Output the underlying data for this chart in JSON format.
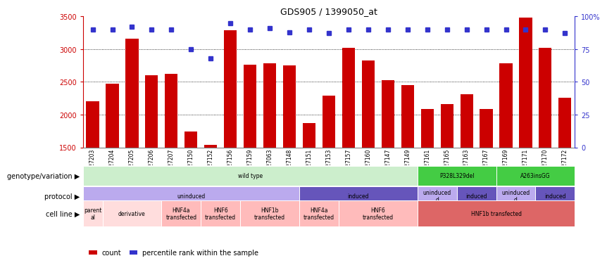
{
  "title": "GDS905 / 1399050_at",
  "samples": [
    "GSM27203",
    "GSM27204",
    "GSM27205",
    "GSM27206",
    "GSM27207",
    "GSM27150",
    "GSM27152",
    "GSM27156",
    "GSM27159",
    "GSM27063",
    "GSM27148",
    "GSM27151",
    "GSM27153",
    "GSM27157",
    "GSM27160",
    "GSM27147",
    "GSM27149",
    "GSM27161",
    "GSM27165",
    "GSM27163",
    "GSM27167",
    "GSM27169",
    "GSM27171",
    "GSM27170",
    "GSM27172"
  ],
  "counts": [
    2200,
    2470,
    3160,
    2600,
    2620,
    1740,
    1540,
    3290,
    2760,
    2780,
    2750,
    1870,
    2290,
    3020,
    2830,
    2530,
    2450,
    2090,
    2160,
    2310,
    2090,
    2780,
    3480,
    3020,
    2260
  ],
  "percentile_values": [
    90,
    90,
    92,
    90,
    90,
    75,
    68,
    95,
    90,
    91,
    88,
    90,
    87,
    90,
    90,
    90,
    90,
    90,
    90,
    90,
    90,
    90,
    90,
    90,
    87
  ],
  "ylim_left": [
    1500,
    3500
  ],
  "ylim_right": [
    0,
    100
  ],
  "bar_color": "#cc0000",
  "dot_color": "#3333cc",
  "bg_color": "#ffffff",
  "genotype_segments": [
    {
      "text": "wild type",
      "start": 0,
      "end": 17,
      "color": "#cceecc"
    },
    {
      "text": "P328L329del",
      "start": 17,
      "end": 21,
      "color": "#44cc44"
    },
    {
      "text": "A263insGG",
      "start": 21,
      "end": 25,
      "color": "#44cc44"
    }
  ],
  "protocol_segments": [
    {
      "text": "uninduced",
      "start": 0,
      "end": 11,
      "color": "#bbaaee"
    },
    {
      "text": "induced",
      "start": 11,
      "end": 17,
      "color": "#6655bb"
    },
    {
      "text": "uninduced\nd",
      "start": 17,
      "end": 19,
      "color": "#bbaaee"
    },
    {
      "text": "induced",
      "start": 19,
      "end": 21,
      "color": "#6655bb"
    },
    {
      "text": "uninduced\nd",
      "start": 21,
      "end": 23,
      "color": "#bbaaee"
    },
    {
      "text": "induced",
      "start": 23,
      "end": 25,
      "color": "#6655bb"
    }
  ],
  "cell_segments": [
    {
      "text": "parent\nal",
      "start": 0,
      "end": 1,
      "color": "#ffdddd"
    },
    {
      "text": "derivative",
      "start": 1,
      "end": 4,
      "color": "#ffdddd"
    },
    {
      "text": "HNF4a\ntransfected",
      "start": 4,
      "end": 6,
      "color": "#ffbbbb"
    },
    {
      "text": "HNF6\ntransfected",
      "start": 6,
      "end": 8,
      "color": "#ffbbbb"
    },
    {
      "text": "HNF1b\ntransfected",
      "start": 8,
      "end": 11,
      "color": "#ffbbbb"
    },
    {
      "text": "HNF4a\ntransfected",
      "start": 11,
      "end": 13,
      "color": "#ffbbbb"
    },
    {
      "text": "HNF6\ntransfected",
      "start": 13,
      "end": 17,
      "color": "#ffbbbb"
    },
    {
      "text": "HNF1b transfected",
      "start": 17,
      "end": 25,
      "color": "#dd6666"
    }
  ],
  "row_labels": [
    "genotype/variation",
    "protocol",
    "cell line"
  ],
  "legend": [
    {
      "color": "#cc0000",
      "label": "count"
    },
    {
      "color": "#3333cc",
      "label": "percentile rank within the sample"
    }
  ]
}
